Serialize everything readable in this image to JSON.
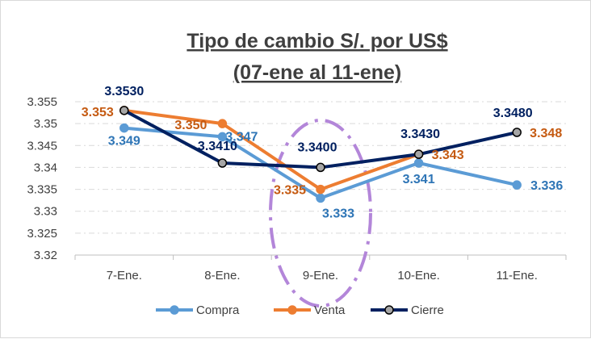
{
  "chart_data": {
    "type": "line",
    "title": "Tipo de cambio S/. por US$",
    "subtitle": "(07-ene al 11-ene)",
    "categories": [
      "7-Ene.",
      "8-Ene.",
      "9-Ene.",
      "10-Ene.",
      "11-Ene."
    ],
    "ylim": [
      3.32,
      3.355
    ],
    "yticks": [
      "3.32",
      "3.325",
      "3.33",
      "3.335",
      "3.34",
      "3.345",
      "3.35",
      "3.355"
    ],
    "grid": true,
    "legend_position": "bottom",
    "series": [
      {
        "name": "Compra",
        "color": "#5b9bd5",
        "label_color": "#2e75b6",
        "values": [
          3.349,
          3.347,
          3.333,
          3.341,
          3.336
        ],
        "labels": [
          "3.349",
          "3.347",
          "3.333",
          "3.341",
          "3.336"
        ]
      },
      {
        "name": "Venta",
        "color": "#ed7d31",
        "label_color": "#c55a11",
        "values": [
          3.353,
          3.35,
          3.335,
          3.343,
          null
        ],
        "labels": [
          "3.353",
          "3.350",
          "3.335",
          "3.343",
          "3.348"
        ]
      },
      {
        "name": "Cierre",
        "color": "#002060",
        "label_color": "#002060",
        "values": [
          3.353,
          3.341,
          3.34,
          3.343,
          3.348
        ],
        "labels": [
          "3.3530",
          "3.3410",
          "3.3400",
          "3.3430",
          "3.3480"
        ]
      }
    ],
    "highlight": {
      "shape": "dash-dot ellipse",
      "color": "#b386d9",
      "around": "9-Ene."
    }
  }
}
